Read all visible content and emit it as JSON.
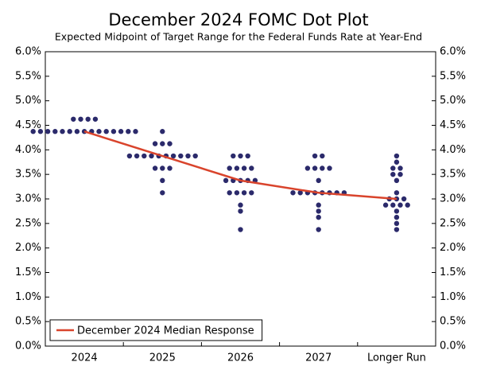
{
  "chart_data": {
    "type": "dot",
    "title": "December 2024 FOMC Dot Plot",
    "subtitle": "Expected Midpoint of Target Range for the Federal Funds Rate at Year-End",
    "categories": [
      "2024",
      "2025",
      "2026",
      "2027",
      "Longer Run"
    ],
    "dots": [
      [
        {
          "value": 4.625,
          "count": 4
        },
        {
          "value": 4.375,
          "count": 15
        }
      ],
      [
        {
          "value": 4.375,
          "count": 1
        },
        {
          "value": 4.125,
          "count": 3
        },
        {
          "value": 3.875,
          "count": 10
        },
        {
          "value": 3.625,
          "count": 3
        },
        {
          "value": 3.375,
          "count": 1
        },
        {
          "value": 3.125,
          "count": 1
        }
      ],
      [
        {
          "value": 3.875,
          "count": 3
        },
        {
          "value": 3.625,
          "count": 4
        },
        {
          "value": 3.375,
          "count": 5
        },
        {
          "value": 3.125,
          "count": 4
        },
        {
          "value": 2.875,
          "count": 1
        },
        {
          "value": 2.75,
          "count": 1
        },
        {
          "value": 2.375,
          "count": 1
        }
      ],
      [
        {
          "value": 3.875,
          "count": 2
        },
        {
          "value": 3.625,
          "count": 4
        },
        {
          "value": 3.375,
          "count": 1
        },
        {
          "value": 3.125,
          "count": 8
        },
        {
          "value": 2.875,
          "count": 1
        },
        {
          "value": 2.75,
          "count": 1
        },
        {
          "value": 2.625,
          "count": 1
        },
        {
          "value": 2.375,
          "count": 1
        }
      ],
      [
        {
          "value": 3.875,
          "count": 1
        },
        {
          "value": 3.75,
          "count": 1
        },
        {
          "value": 3.625,
          "count": 2
        },
        {
          "value": 3.5,
          "count": 2
        },
        {
          "value": 3.375,
          "count": 1
        },
        {
          "value": 3.125,
          "count": 1
        },
        {
          "value": 3.0,
          "count": 3
        },
        {
          "value": 2.875,
          "count": 4
        },
        {
          "value": 2.75,
          "count": 1
        },
        {
          "value": 2.625,
          "count": 1
        },
        {
          "value": 2.5,
          "count": 1
        },
        {
          "value": 2.375,
          "count": 1
        }
      ]
    ],
    "dot_color": "#2b2a6b",
    "series": [
      {
        "name": "December 2024 Median Response",
        "color": "#d9442c",
        "values": [
          4.375,
          3.875,
          3.375,
          3.125,
          3.0
        ]
      }
    ],
    "ylim": [
      0,
      6
    ],
    "yticks": [
      {
        "value": 0,
        "label": "0.0%"
      },
      {
        "value": 0.5,
        "label": "0.5%"
      },
      {
        "value": 1,
        "label": "1.0%"
      },
      {
        "value": 1.5,
        "label": "1.5%"
      },
      {
        "value": 2,
        "label": "2.0%"
      },
      {
        "value": 2.5,
        "label": "2.5%"
      },
      {
        "value": 3,
        "label": "3.0%"
      },
      {
        "value": 3.5,
        "label": "3.5%"
      },
      {
        "value": 4,
        "label": "4.0%"
      },
      {
        "value": 4.5,
        "label": "4.5%"
      },
      {
        "value": 5,
        "label": "5.0%"
      },
      {
        "value": 5.5,
        "label": "5.5%"
      },
      {
        "value": 6,
        "label": "6.0%"
      }
    ],
    "legend": "lower left"
  }
}
